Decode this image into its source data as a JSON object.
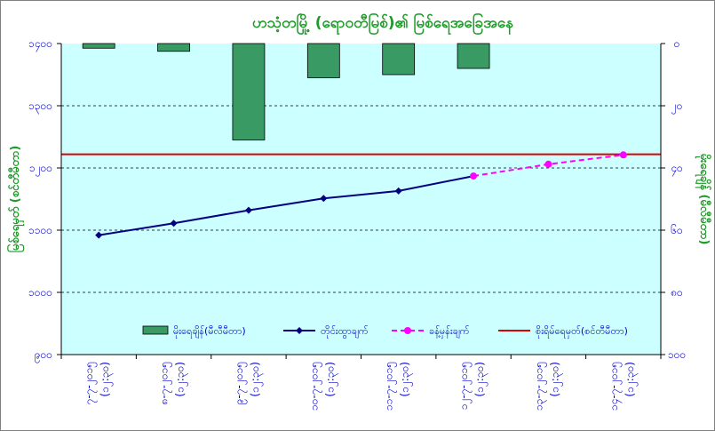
{
  "chart_data": {
    "type": "bar+line",
    "title": "ဟသံ့တမြို့ (ရော၀တီမြစ်)၏ မြစ်ရေအခြေအနေ",
    "ylabel_left": "မြစ်ရေမှတ် (စင်တီမီတာ)",
    "ylabel_right": "မိုးရေချိန် (မီလီမီတာ)",
    "categories": [
      [
        "၇-၇-၂၀၁၅",
        "(၁၂:၃၀)"
      ],
      [
        "၈-၇-၂၀၁၅",
        "(၁၂:၃၀)"
      ],
      [
        "၉-၇-၂၀၁၅",
        "(၁၂:၃၀)"
      ],
      [
        "၁၀-၇-၂၀၁၅",
        "(၁၂:၃၀)"
      ],
      [
        "၁၁-၇-၂၀၁၅",
        "(၁၂:၃၀)"
      ],
      [
        "၁၂-၇-၂၀၁၅",
        "(၁၂:၃၀)"
      ],
      [
        "၁၃-၇-၂၀၁၅",
        "(၁၂:၃၀)"
      ],
      [
        "၁၄-၇-၂၀၁၅",
        "(၁၂:၃၀)"
      ]
    ],
    "left_axis": {
      "min": 900,
      "max": 1400,
      "step": 100,
      "tick_labels": [
        "၉၀၀",
        "၁၀၀၀",
        "၁၁၀၀",
        "၁၂၀၀",
        "၁၃၀၀",
        "၁၄၀၀"
      ]
    },
    "right_axis": {
      "min": 0,
      "max": 100,
      "step": 20,
      "reversed": true,
      "tick_labels": [
        "၀",
        "၂၀",
        "၄၀",
        "၆၀",
        "၈၀",
        "၁၀၀"
      ]
    },
    "series": [
      {
        "name": "မိုးရေချိန်(မီလီမီတာ)",
        "type": "bar",
        "axis": "right",
        "color": "#3a9a63",
        "values": [
          1.5,
          2.5,
          31,
          11,
          10,
          8,
          null,
          null
        ]
      },
      {
        "name": "တိုင်းထွာချက်",
        "type": "line",
        "axis": "left",
        "color": "#000080",
        "values": [
          1092,
          1111,
          1132,
          1151,
          1163,
          1187,
          null,
          null
        ]
      },
      {
        "name": "ခန့်မှန်းချက်",
        "type": "line-dashed",
        "axis": "left",
        "color": "#ff00ff",
        "values": [
          null,
          null,
          null,
          null,
          null,
          1187,
          1206,
          1221
        ]
      },
      {
        "name": "စိုးရိမ်ရေမှတ်(စင်တီမီတာ)",
        "type": "hline",
        "axis": "left",
        "color": "#e00000",
        "value": 1222
      }
    ],
    "plot_background": "#ccffff",
    "grid": true,
    "legend_position": "bottom-inside"
  }
}
